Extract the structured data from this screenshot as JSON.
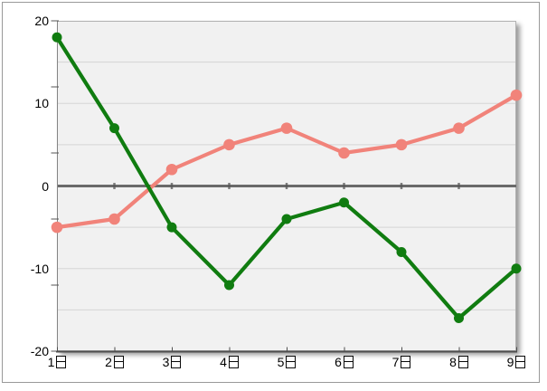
{
  "window": {
    "background": "#ffffff",
    "frame_border_color": "#999999"
  },
  "chart_data": {
    "type": "line",
    "title": "",
    "xlabel": "",
    "ylabel": "",
    "categories": [
      "1日",
      "2日",
      "3日",
      "4日",
      "5日",
      "6日",
      "7日",
      "8日",
      "9日"
    ],
    "series": [
      {
        "name": "green",
        "color": "#107c10",
        "marker": "circle",
        "values": [
          18,
          7,
          -5,
          -12,
          -4,
          -2,
          -8,
          -16,
          -10
        ]
      },
      {
        "name": "salmon",
        "color": "#f1837a",
        "marker": "circle",
        "values": [
          -5,
          -4,
          2,
          5,
          7,
          4,
          5,
          7,
          11
        ]
      }
    ],
    "ylim": [
      -20,
      20
    ],
    "y_axis_labels": [
      20,
      10,
      0,
      -10,
      -20
    ],
    "y_gridlines": [
      15,
      10,
      5,
      -5,
      -10,
      -15
    ],
    "y_axis_tick_values": [
      20,
      12,
      4,
      -4,
      -12,
      -20
    ],
    "grid": true,
    "legend": false,
    "zero_line": true,
    "plot_background": "#f1f1f1",
    "gridline_color": "#d5d5d5",
    "zero_line_color": "#6a6a6a",
    "zero_tick_color": "#565656",
    "y_axis_color": "#858585",
    "x_axis_color": "#4f4f4f",
    "tick_color": "#555555",
    "label_color": "#000000"
  }
}
